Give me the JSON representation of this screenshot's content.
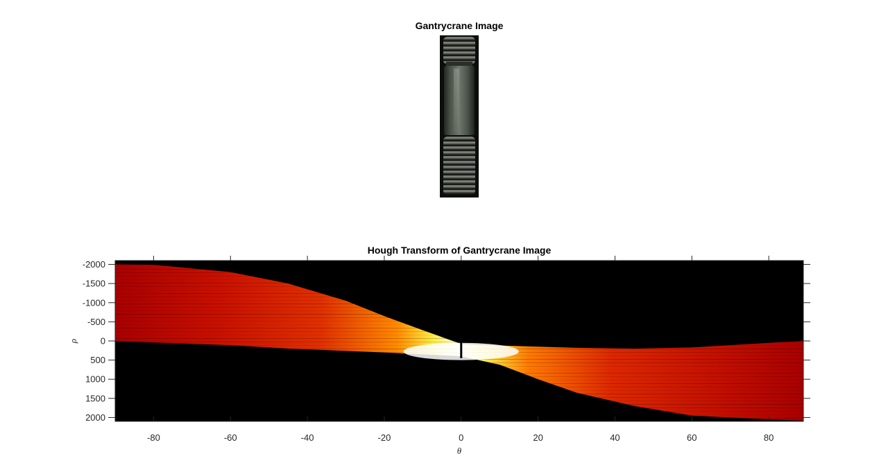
{
  "figure": {
    "image_title": "Gantrycrane Image",
    "hough_title": "Hough Transform of Gantrycrane Image"
  },
  "chart_data": {
    "type": "heatmap",
    "title": "Hough Transform of Gantrycrane Image",
    "xlabel": "θ",
    "ylabel": "ρ",
    "xlim": [
      -90,
      89
    ],
    "ylim": [
      -2100,
      2100
    ],
    "y_reversed": true,
    "x_ticks": [
      -80,
      -60,
      -40,
      -20,
      0,
      20,
      40,
      60,
      80
    ],
    "y_ticks": [
      -2000,
      -1500,
      -1000,
      -500,
      0,
      500,
      1000,
      1500,
      2000
    ],
    "colormap": "hot",
    "background_color": "#000000",
    "band_envelope": {
      "theta": [
        -90,
        -80,
        -60,
        -45,
        -30,
        -20,
        -10,
        0,
        10,
        20,
        30,
        45,
        60,
        80,
        89
      ],
      "rho_min": [
        -2000,
        -1990,
        -1800,
        -1500,
        -1050,
        -650,
        -280,
        80,
        120,
        150,
        180,
        200,
        170,
        50,
        0
      ],
      "rho_max": [
        0,
        40,
        110,
        200,
        260,
        300,
        350,
        400,
        620,
        1000,
        1350,
        1700,
        1950,
        2050,
        2080
      ]
    },
    "peak_region": {
      "theta_range": [
        -15,
        15
      ],
      "rho_range": [
        50,
        500
      ]
    }
  }
}
